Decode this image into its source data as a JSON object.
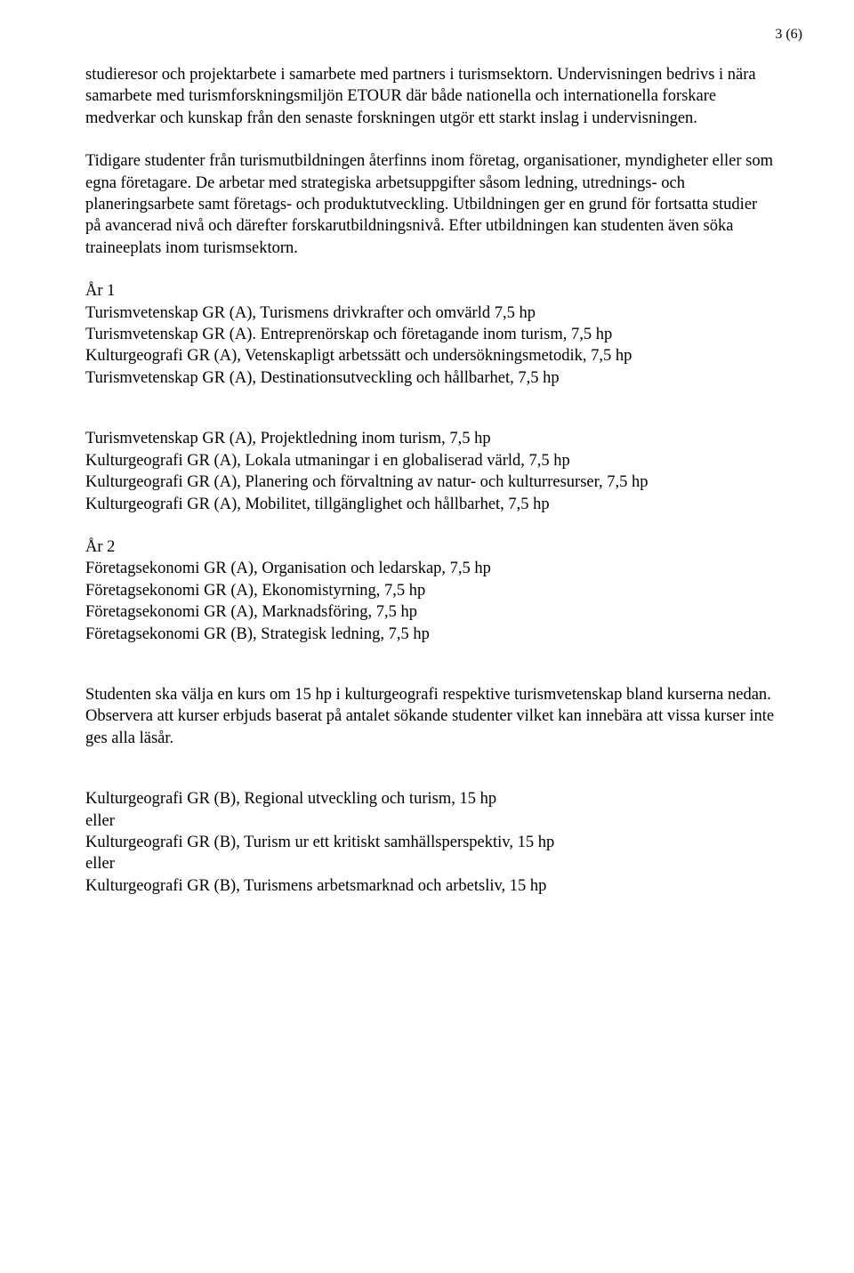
{
  "page_number": "3 (6)",
  "paragraphs": {
    "p1": "studieresor och projektarbete i samarbete med partners i turismsektorn. Undervisningen bedrivs i nära samarbete med turismforskningsmiljön ETOUR där både nationella och internationella forskare medverkar och kunskap från den senaste forskningen utgör ett starkt inslag i undervisningen.",
    "p2": "Tidigare studenter från turismutbildningen återfinns inom företag, organisationer, myndigheter eller som egna företagare. De arbetar med strategiska arbetsuppgifter såsom ledning, utrednings- och planeringsarbete samt företags- och produktutveckling. Utbildningen ger en grund för fortsatta studier på avancerad nivå och därefter forskarutbildningsnivå. Efter utbildningen kan studenten även söka traineeplats inom turismsektorn.",
    "p3": "Studenten ska välja en kurs om 15 hp i kulturgeografi respektive turismvetenskap bland kurserna nedan. Observera att kurser erbjuds baserat på antalet sökande studenter vilket kan innebära att vissa kurser inte ges alla läsår."
  },
  "blocks": {
    "year1": {
      "lines": [
        "År 1",
        "Turismvetenskap GR (A), Turismens drivkrafter och omvärld 7,5 hp",
        "Turismvetenskap GR (A). Entreprenörskap och företagande inom turism, 7,5 hp",
        "Kulturgeografi GR (A), Vetenskapligt arbetssätt och undersökningsmetodik, 7,5 hp",
        "Turismvetenskap GR (A), Destinationsutveckling och hållbarhet, 7,5 hp"
      ]
    },
    "year1b": {
      "lines": [
        "Turismvetenskap GR (A), Projektledning inom turism, 7,5 hp",
        "Kulturgeografi GR (A), Lokala utmaningar i en globaliserad värld, 7,5 hp",
        "Kulturgeografi GR (A), Planering och förvaltning av natur- och kulturresurser, 7,5 hp",
        "Kulturgeografi GR (A), Mobilitet, tillgänglighet och hållbarhet, 7,5 hp"
      ]
    },
    "year2": {
      "lines": [
        "År 2",
        "Företagsekonomi GR (A), Organisation och ledarskap, 7,5 hp",
        "Företagsekonomi GR (A), Ekonomistyrning, 7,5 hp",
        "Företagsekonomi GR (A), Marknadsföring, 7,5 hp",
        "Företagsekonomi GR (B), Strategisk ledning, 7,5 hp"
      ]
    },
    "electives": {
      "lines": [
        "Kulturgeografi GR (B), Regional utveckling och turism, 15 hp",
        "eller",
        "Kulturgeografi GR (B), Turism ur ett kritiskt samhällsperspektiv, 15 hp",
        "eller",
        "Kulturgeografi GR (B), Turismens arbetsmarknad och arbetsliv, 15 hp"
      ]
    }
  }
}
